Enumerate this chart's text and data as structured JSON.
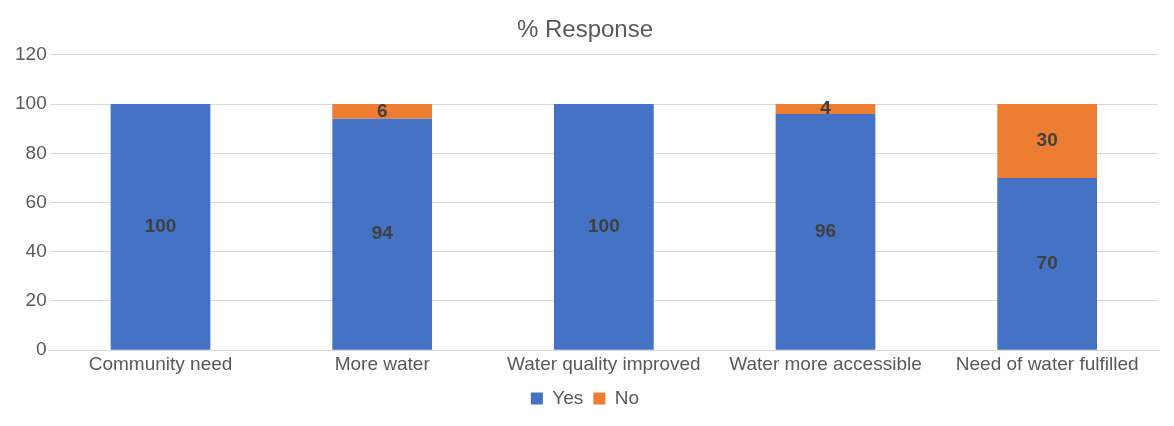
{
  "chart_data": {
    "type": "bar",
    "title": "% Response",
    "stacked": true,
    "categories": [
      "Community need",
      "More water",
      "Water quality improved",
      "Water more accessible",
      "Need of water fulfilled"
    ],
    "series": [
      {
        "name": "Yes",
        "color": "#4472c4",
        "values": [
          100,
          94,
          100,
          96,
          70
        ]
      },
      {
        "name": "No",
        "color": "#ed7d31",
        "values": [
          null,
          6,
          null,
          4,
          30
        ]
      }
    ],
    "ylim": [
      0,
      120
    ],
    "yticks": [
      0,
      20,
      40,
      60,
      80,
      100,
      120
    ],
    "grid": "y",
    "legend": "bottom",
    "data_labels": true
  }
}
